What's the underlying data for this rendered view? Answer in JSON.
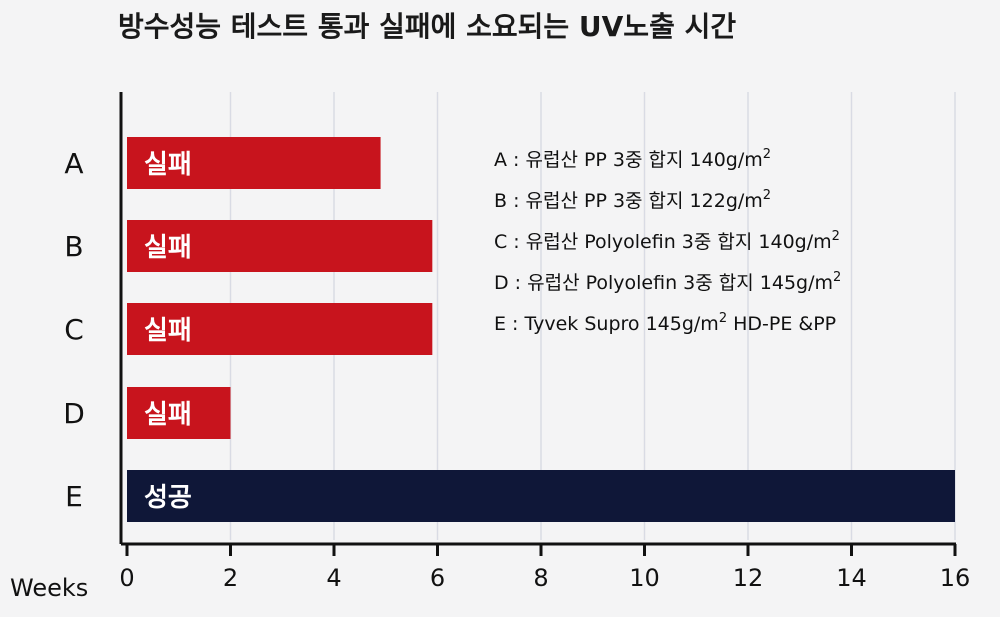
{
  "chart_data": {
    "type": "bar",
    "orientation": "horizontal",
    "title": "방수성능 테스트 통과 실패에 소요되는 UV노출 시간",
    "xlabel": "Weeks",
    "xlim": [
      0,
      16
    ],
    "xticks": [
      0,
      2,
      4,
      6,
      8,
      10,
      12,
      14,
      16
    ],
    "grid": "vertical",
    "categories": [
      "A",
      "B",
      "C",
      "D",
      "E"
    ],
    "values": [
      4.9,
      5.9,
      5.9,
      2.0,
      16
    ],
    "bar_labels": [
      "실패",
      "실패",
      "실패",
      "실패",
      "성공"
    ],
    "bar_colors": [
      "#c8141d",
      "#c8141d",
      "#c8141d",
      "#c8141d",
      "#0f1738"
    ],
    "legend": [
      {
        "key": "A",
        "base": "A : 유럽산 PP 3중 합지 140g/m",
        "sup": "2",
        "after": ""
      },
      {
        "key": "B",
        "base": "B : 유럽산 PP 3중 합지 122g/m",
        "sup": "2",
        "after": ""
      },
      {
        "key": "C",
        "base": "C : 유럽산 Polyolefin 3중 합지 140g/m",
        "sup": "2",
        "after": ""
      },
      {
        "key": "D",
        "base": "D : 유럽산 Polyolefin 3중 합지 145g/m",
        "sup": "2",
        "after": ""
      },
      {
        "key": "E",
        "base": "E : Tyvek Supro 145g/m",
        "sup": "2",
        "after": " HD-PE &PP"
      }
    ],
    "legend_position": "top-right"
  }
}
